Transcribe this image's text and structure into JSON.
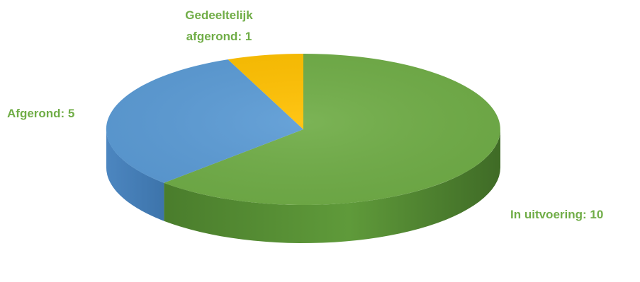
{
  "chart_data": {
    "type": "pie",
    "title": "",
    "slices": [
      {
        "label": "In uitvoering",
        "value": 10,
        "display": "In uitvoering: 10",
        "color": "#70ad47"
      },
      {
        "label": "Afgerond",
        "value": 5,
        "display": "Afgerond: 5",
        "color": "#5b9bd5"
      },
      {
        "label": "Gedeeltelijk afgerond",
        "value": 1,
        "display_lines": [
          "Gedeeltelijk",
          "afgerond: 1"
        ],
        "color": "#ffc000"
      }
    ],
    "label_color": "#70ad47",
    "legend": "none",
    "style": "3d"
  }
}
